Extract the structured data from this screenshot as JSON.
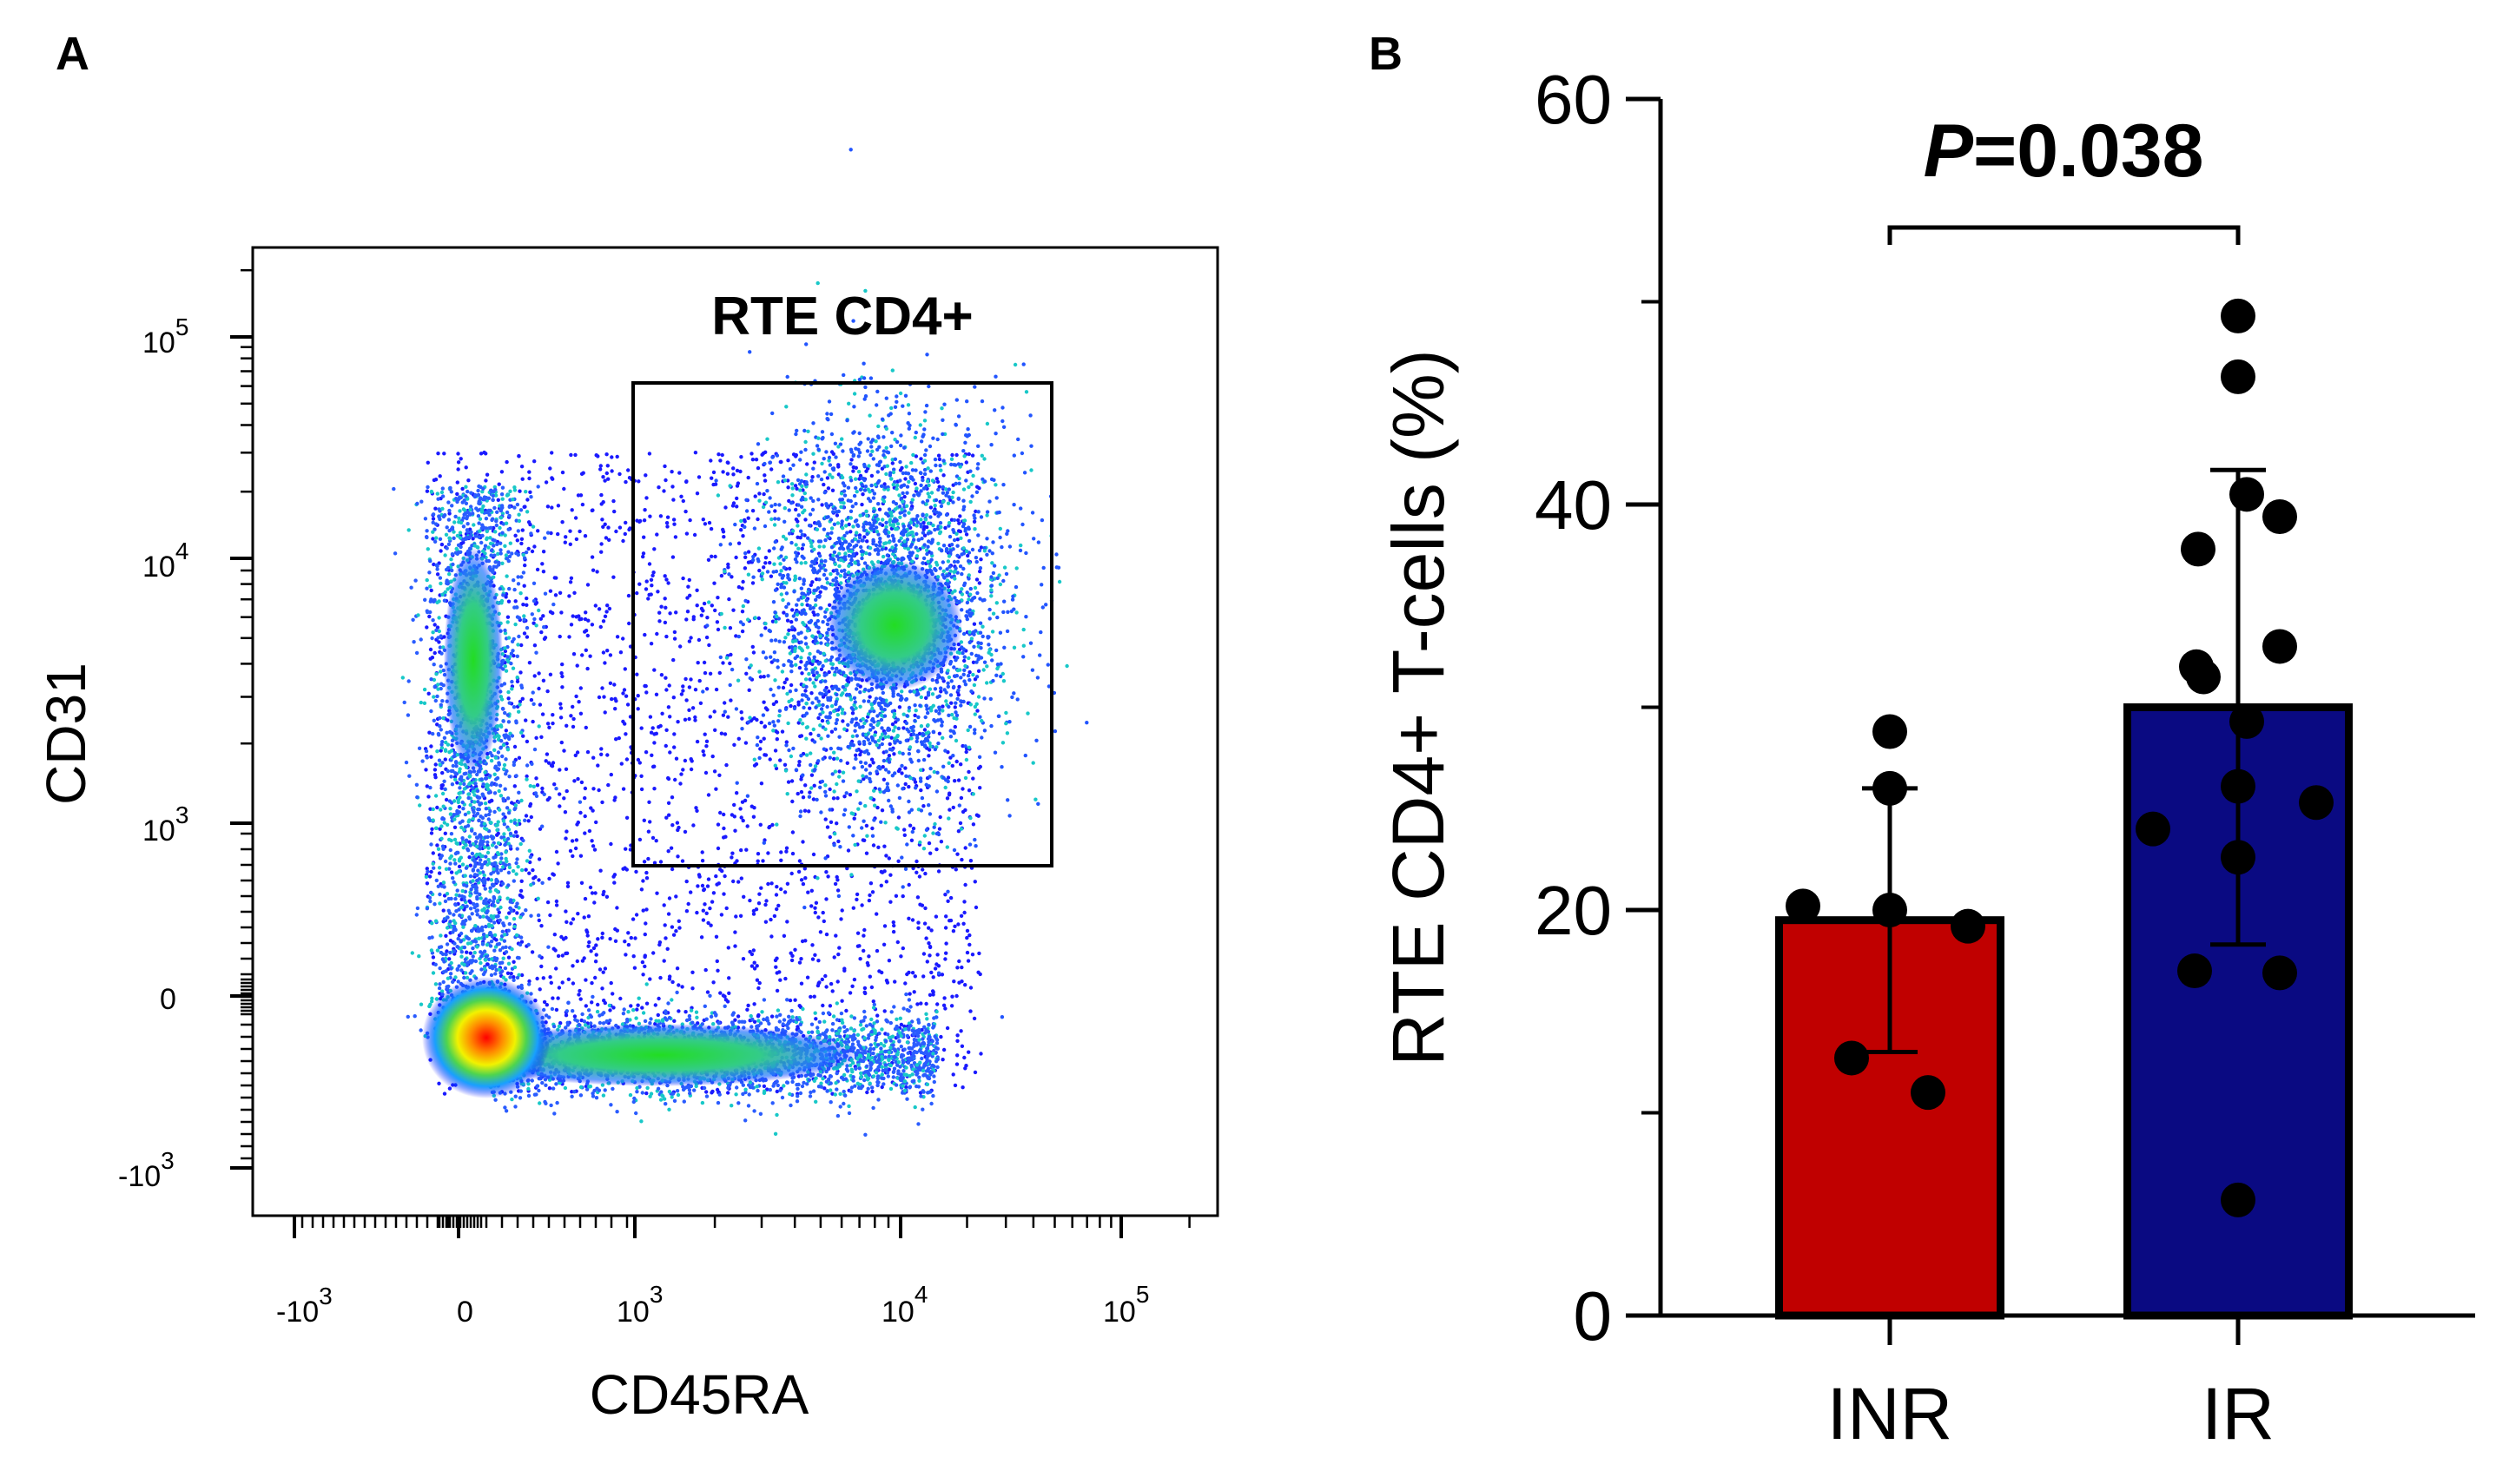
{
  "panel_a": {
    "letter": "A",
    "gate_label": "RTE CD4+",
    "xlabel": "CD45RA",
    "ylabel": "CD31",
    "x_ticks": [
      {
        "base": "-10",
        "exp": "3"
      },
      {
        "base": "0",
        "exp": ""
      },
      {
        "base": "10",
        "exp": "3"
      },
      {
        "base": "10",
        "exp": "4"
      },
      {
        "base": "10",
        "exp": "5"
      }
    ],
    "y_ticks": [
      {
        "base": "10",
        "exp": "5"
      },
      {
        "base": "10",
        "exp": "4"
      },
      {
        "base": "10",
        "exp": "3"
      },
      {
        "base": "0",
        "exp": ""
      },
      {
        "base": "-10",
        "exp": "3"
      }
    ]
  },
  "panel_b": {
    "letter": "B",
    "stat_p": "P",
    "stat_value": "=0.038"
  },
  "chart_data": [
    {
      "type": "scatter",
      "title": "",
      "xlabel": "CD45RA",
      "ylabel": "CD31",
      "x_scale": "biexponential",
      "y_scale": "biexponential",
      "populations": [
        {
          "name": "CD31- CD45RA- cluster",
          "x_approx": 100,
          "y_approx": -300
        },
        {
          "name": "CD31+ CD45RA- band",
          "x_approx": 0,
          "y_approx": 5000
        },
        {
          "name": "CD31+ CD45RA+ cluster",
          "x_approx": 10000,
          "y_approx": 5000
        }
      ],
      "gates": [
        {
          "name": "RTE CD4+",
          "x_range": [
            1000,
            40000
          ],
          "y_range": [
            800,
            40000
          ]
        }
      ]
    },
    {
      "type": "bar",
      "categories": [
        "INR",
        "IR"
      ],
      "values": [
        19.5,
        30.0
      ],
      "error_sd": [
        6.5,
        11.7
      ],
      "colors": [
        "#c00000",
        "#0a0a82"
      ],
      "points": [
        [
          28.8,
          26.0,
          20.2,
          20.0,
          19.2,
          12.7,
          11.0
        ],
        [
          49.3,
          46.3,
          40.5,
          39.4,
          37.8,
          33.0,
          32.0,
          31.5,
          29.3,
          26.1,
          25.3,
          24.0,
          22.6,
          17.0,
          16.9,
          5.7
        ]
      ],
      "ylabel": "RTE CD4+ T-cells (%)",
      "ylim": [
        0,
        60
      ],
      "yticks": [
        0,
        20,
        40,
        60
      ],
      "annotation": "P=0.038"
    }
  ]
}
